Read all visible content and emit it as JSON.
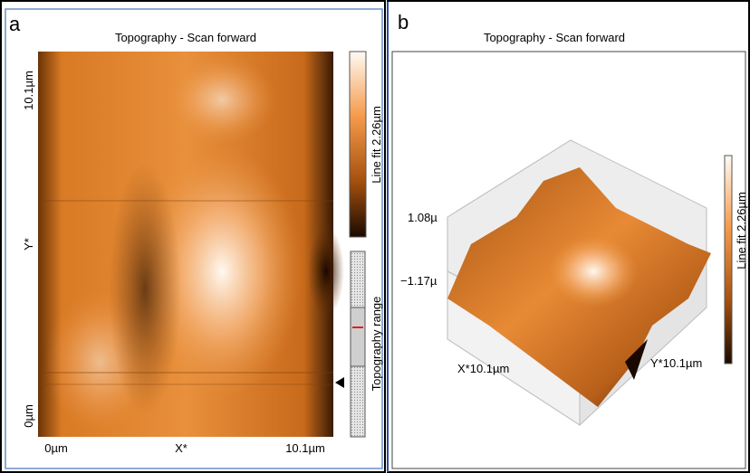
{
  "panel_a": {
    "label": "a",
    "title": "Topography - Scan forward",
    "y_axis": {
      "top": "10.1µm",
      "middle": "Y*",
      "bottom": "0µm"
    },
    "x_axis": {
      "left": "0µm",
      "middle": "X*",
      "right": "10.1µm"
    },
    "colorbar_label": "Line fit 2.26µm",
    "range_label": "Topography range"
  },
  "panel_b": {
    "label": "b",
    "title": "Topography - Scan forward",
    "z_top": "1.08µ",
    "z_bottom": "−1.17µ",
    "x_label": "X*10.1µm",
    "y_label": "Y*10.1µm",
    "colorbar_label": "Line fit 2.26µm"
  }
}
